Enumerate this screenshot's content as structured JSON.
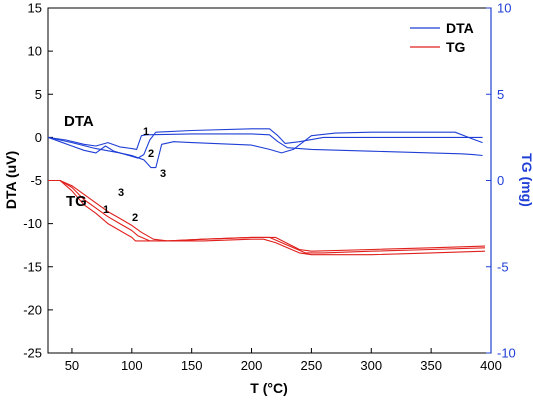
{
  "chart_data": {
    "type": "line",
    "xlabel": "T (°C)",
    "ylabel_left": "DTA (uV)",
    "ylabel_right": "TG (mg)",
    "xlim": [
      30,
      400
    ],
    "ylim_left": [
      -25,
      15
    ],
    "ylim_right": [
      -10,
      10
    ],
    "x_ticks": [
      50,
      100,
      150,
      200,
      250,
      300,
      350,
      400
    ],
    "y_left_ticks": [
      15,
      10,
      5,
      0,
      -5,
      -10,
      -15,
      -20,
      -25
    ],
    "y_right_ticks": [
      10,
      5,
      0,
      -5,
      -10
    ],
    "grid": false,
    "legend_position": "top-right",
    "legend": [
      {
        "label": "DTA",
        "color": "#1f3fd6"
      },
      {
        "label": "TG",
        "color": "#e0201c"
      }
    ],
    "annotations": {
      "dta_label": "DTA",
      "tg_label": "TG",
      "dta_numbers": [
        "1",
        "2",
        "3"
      ],
      "tg_numbers": [
        "1",
        "2",
        "3"
      ]
    },
    "series": [
      {
        "group": "DTA",
        "run": "1",
        "axis": "left",
        "color": "#1f3fd6",
        "x": [
          30,
          45,
          60,
          70,
          80,
          90,
          95,
          100,
          104,
          108,
          112,
          150,
          200,
          215,
          222,
          230,
          250,
          300,
          350,
          375,
          385,
          393
        ],
        "y": [
          0,
          -0.3,
          -0.8,
          -1.0,
          -0.6,
          -1.1,
          -1.2,
          -1.3,
          -1.4,
          0.2,
          0.3,
          0.4,
          0.4,
          0.3,
          -0.5,
          -1.2,
          -1.4,
          -1.6,
          -1.8,
          -1.9,
          -2.0,
          -2.1
        ]
      },
      {
        "group": "DTA",
        "run": "2",
        "axis": "left",
        "color": "#1f3fd6",
        "x": [
          30,
          40,
          50,
          60,
          70,
          78,
          85,
          95,
          105,
          110,
          115,
          120,
          150,
          200,
          215,
          222,
          228,
          240,
          260,
          300,
          350,
          365,
          380,
          393
        ],
        "y": [
          0,
          -0.5,
          -1.0,
          -1.5,
          -1.8,
          -1.0,
          -1.6,
          -2.0,
          -2.4,
          -2.0,
          -0.3,
          0.6,
          0.8,
          1.0,
          1.0,
          0.2,
          -0.7,
          -0.5,
          0.0,
          0.0,
          0.0,
          0.0,
          0.0,
          0.0
        ]
      },
      {
        "group": "DTA",
        "run": "3",
        "axis": "left",
        "color": "#1f3fd6",
        "x": [
          30,
          50,
          70,
          90,
          100,
          110,
          116,
          120,
          125,
          135,
          150,
          200,
          215,
          225,
          235,
          250,
          270,
          300,
          350,
          370,
          385,
          393
        ],
        "y": [
          0,
          -0.6,
          -1.3,
          -1.8,
          -2.1,
          -2.6,
          -3.5,
          -3.5,
          -0.8,
          -0.5,
          -0.6,
          -0.9,
          -1.4,
          -1.8,
          -1.4,
          0.2,
          0.5,
          0.6,
          0.6,
          0.6,
          -0.2,
          -0.6
        ]
      },
      {
        "group": "TG",
        "run": "1",
        "axis": "right",
        "color": "#e0201c",
        "x": [
          30,
          40,
          50,
          60,
          70,
          80,
          90,
          100,
          103,
          130,
          160,
          200,
          220,
          240,
          250,
          300,
          350,
          395
        ],
        "y": [
          0,
          0,
          -0.6,
          -1.4,
          -1.9,
          -2.5,
          -2.9,
          -3.3,
          -3.5,
          -3.5,
          -3.4,
          -3.3,
          -3.3,
          -4.0,
          -4.1,
          -4.0,
          -3.9,
          -3.8
        ]
      },
      {
        "group": "TG",
        "run": "2",
        "axis": "right",
        "color": "#e0201c",
        "x": [
          30,
          40,
          50,
          60,
          70,
          80,
          90,
          100,
          105,
          115,
          130,
          160,
          200,
          215,
          225,
          245,
          260,
          300,
          350,
          395
        ],
        "y": [
          0,
          0,
          -0.4,
          -1.1,
          -1.6,
          -2.1,
          -2.5,
          -2.9,
          -3.2,
          -3.5,
          -3.5,
          -3.4,
          -3.3,
          -3.3,
          -3.6,
          -4.2,
          -4.2,
          -4.1,
          -4.0,
          -3.9
        ]
      },
      {
        "group": "TG",
        "run": "3",
        "axis": "right",
        "color": "#e0201c",
        "x": [
          30,
          40,
          50,
          60,
          70,
          80,
          90,
          100,
          108,
          118,
          130,
          160,
          200,
          210,
          220,
          240,
          250,
          300,
          350,
          395
        ],
        "y": [
          0,
          0,
          -0.3,
          -0.8,
          -1.3,
          -1.8,
          -2.2,
          -2.6,
          -3.0,
          -3.4,
          -3.5,
          -3.5,
          -3.4,
          -3.4,
          -3.6,
          -4.2,
          -4.3,
          -4.3,
          -4.2,
          -4.1
        ]
      }
    ]
  }
}
